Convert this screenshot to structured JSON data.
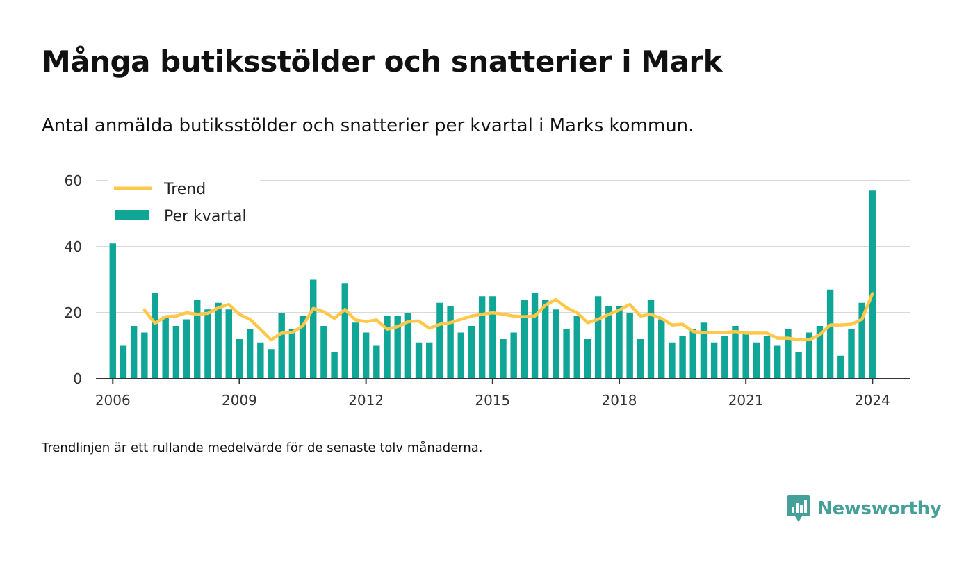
{
  "title": "Många butiksstölder och snatterier i Mark",
  "subtitle": "Antal anmälda butiksstölder och snatterier per kvartal i Marks kommun.",
  "footnote": "Trendlinjen är ett rullande medelvärde för de senaste tolv månaderna.",
  "brand": {
    "name": "Newsworthy",
    "icon": "newsworthy-logo-icon"
  },
  "colors": {
    "bar": "#0fa597",
    "trend": "#ffc84a",
    "grid": "#d9d9d9",
    "axis": "#333333",
    "brand": "#46a09a"
  },
  "chart_data": {
    "type": "bar",
    "legend_position": "top-left",
    "grid": true,
    "ylim": [
      0,
      60
    ],
    "yticks": [
      0,
      20,
      40,
      60
    ],
    "xlim": [
      2005.6,
      2024.9
    ],
    "xticks": [
      2006,
      2009,
      2012,
      2015,
      2018,
      2021,
      2024
    ],
    "x_start": 2006.0,
    "x_step": 0.25,
    "series": [
      {
        "name": "Per kvartal",
        "type": "bar",
        "values": [
          41,
          10,
          16,
          14,
          26,
          19,
          16,
          18,
          24,
          21,
          23,
          21,
          12,
          15,
          11,
          9,
          20,
          15,
          19,
          30,
          16,
          8,
          29,
          17,
          14,
          10,
          19,
          19,
          20,
          11,
          11,
          23,
          22,
          14,
          16,
          25,
          25,
          12,
          14,
          24,
          26,
          24,
          21,
          15,
          19,
          12,
          25,
          22,
          22,
          20,
          12,
          24,
          18,
          11,
          13,
          15,
          17,
          11,
          13,
          16,
          14,
          11,
          13,
          10,
          15,
          8,
          14,
          16,
          27,
          7,
          15,
          23,
          57
        ]
      },
      {
        "name": "Trend",
        "type": "line",
        "values": [
          null,
          null,
          null,
          20.8,
          16.8,
          18.8,
          19.0,
          20.0,
          19.5,
          19.8,
          21.5,
          22.5,
          19.5,
          18.0,
          15.0,
          11.8,
          13.8,
          14.0,
          16.0,
          21.3,
          20.3,
          18.3,
          21.0,
          17.8,
          17.3,
          17.8,
          15.0,
          15.8,
          17.3,
          17.5,
          15.3,
          16.5,
          17.0,
          18.0,
          19.0,
          19.5,
          20.0,
          19.5,
          19.0,
          18.8,
          19.0,
          22.3,
          24.0,
          21.5,
          20.0,
          17.0,
          18.0,
          19.5,
          20.8,
          22.5,
          19.0,
          19.5,
          18.3,
          16.3,
          16.5,
          14.3,
          14.0,
          14.0,
          14.0,
          14.3,
          13.8,
          13.8,
          13.8,
          12.3,
          12.3,
          11.8,
          11.8,
          13.3,
          16.3,
          16.3,
          16.5,
          18.0,
          25.8
        ]
      }
    ]
  }
}
